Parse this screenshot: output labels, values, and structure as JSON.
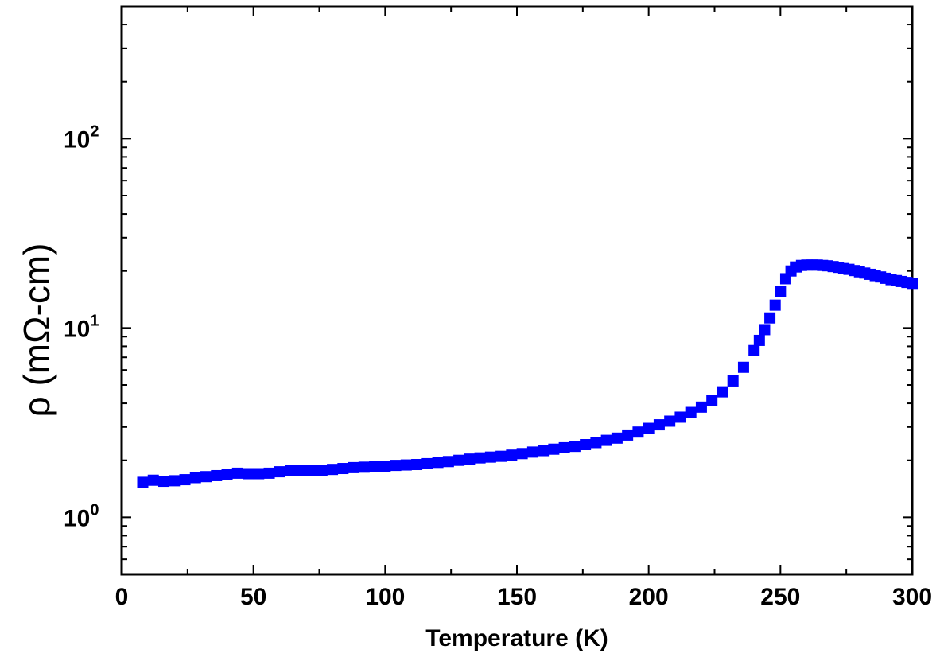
{
  "chart_data": {
    "type": "scatter",
    "xlabel": "Temperature (K)",
    "ylabel": "ρ (mΩ-cm)",
    "yscale": "log",
    "xlim": [
      0,
      300
    ],
    "ylim": [
      0.5,
      500
    ],
    "x_ticks": [
      "0",
      "50",
      "100",
      "150",
      "200",
      "250",
      "300"
    ],
    "y_ticks": [
      {
        "base": "10",
        "exp": "0",
        "value": 1
      },
      {
        "base": "10",
        "exp": "1",
        "value": 10
      },
      {
        "base": "10",
        "exp": "2",
        "value": 100
      }
    ],
    "grid": false,
    "legend": "none",
    "marker": "square",
    "color": "#0000ff",
    "series": [
      {
        "x": [
          8,
          12,
          16,
          20,
          24,
          28,
          32,
          36,
          40,
          44,
          48,
          52,
          56,
          60,
          64,
          68,
          72,
          76,
          80,
          84,
          88,
          92,
          96,
          100,
          104,
          108,
          112,
          116,
          120,
          124,
          128,
          132,
          136,
          140,
          144,
          148,
          152,
          156,
          160,
          164,
          168,
          172,
          176,
          180,
          184,
          188,
          192,
          196,
          200,
          204,
          208,
          212,
          216,
          220,
          224,
          228,
          232,
          236,
          240,
          242,
          244,
          246,
          248,
          250,
          252,
          254,
          256,
          258,
          260,
          262,
          264,
          266,
          268,
          270,
          272,
          274,
          276,
          278,
          280,
          282,
          284,
          286,
          288,
          290,
          292,
          294,
          296,
          298,
          300
        ],
        "y": [
          1.53,
          1.57,
          1.55,
          1.56,
          1.58,
          1.62,
          1.64,
          1.66,
          1.69,
          1.71,
          1.7,
          1.7,
          1.71,
          1.74,
          1.77,
          1.76,
          1.76,
          1.77,
          1.79,
          1.81,
          1.83,
          1.84,
          1.85,
          1.86,
          1.88,
          1.89,
          1.9,
          1.92,
          1.95,
          1.97,
          2.0,
          2.03,
          2.06,
          2.08,
          2.1,
          2.13,
          2.17,
          2.21,
          2.25,
          2.29,
          2.33,
          2.37,
          2.42,
          2.48,
          2.55,
          2.62,
          2.72,
          2.82,
          2.95,
          3.08,
          3.22,
          3.38,
          3.58,
          3.82,
          4.15,
          4.6,
          5.25,
          6.2,
          7.6,
          8.6,
          9.8,
          11.3,
          13.2,
          15.6,
          18.2,
          20.0,
          21.0,
          21.4,
          21.5,
          21.5,
          21.5,
          21.4,
          21.3,
          21.1,
          20.9,
          20.6,
          20.4,
          20.1,
          19.8,
          19.5,
          19.2,
          18.9,
          18.6,
          18.3,
          18.0,
          17.8,
          17.6,
          17.4,
          17.2
        ]
      }
    ]
  }
}
